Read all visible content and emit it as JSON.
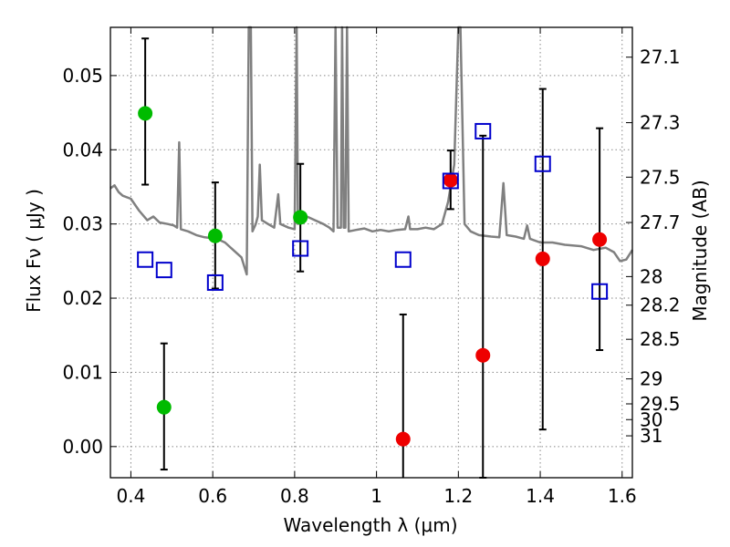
{
  "chart_data": {
    "type": "scatter",
    "xlabel": "Wavelength  λ (μm)",
    "ylabel": "Flux  Fν ( μJy )",
    "y2label": "Magnitude (AB)",
    "xlim": [
      0.35,
      1.625
    ],
    "ylim": [
      -0.0042,
      0.0565
    ],
    "grid": true,
    "x_ticks": [
      {
        "value": 0.4,
        "label": "0.4"
      },
      {
        "value": 0.6,
        "label": "0.6"
      },
      {
        "value": 0.8,
        "label": "0.8"
      },
      {
        "value": 1.0,
        "label": "1"
      },
      {
        "value": 1.2,
        "label": "1.2"
      },
      {
        "value": 1.4,
        "label": "1.4"
      },
      {
        "value": 1.6,
        "label": "1.6"
      }
    ],
    "y_ticks": [
      {
        "value": 0.0,
        "label": "0.00"
      },
      {
        "value": 0.01,
        "label": "0.01"
      },
      {
        "value": 0.02,
        "label": "0.02"
      },
      {
        "value": 0.03,
        "label": "0.03"
      },
      {
        "value": 0.04,
        "label": "0.04"
      },
      {
        "value": 0.05,
        "label": "0.05"
      }
    ],
    "y2_ticks": [
      {
        "mag": 27.1,
        "label": "27.1"
      },
      {
        "mag": 27.3,
        "label": "27.3"
      },
      {
        "mag": 27.5,
        "label": "27.5"
      },
      {
        "mag": 27.7,
        "label": "27.7"
      },
      {
        "mag": 28.0,
        "label": "28"
      },
      {
        "mag": 28.2,
        "label": "28.2"
      },
      {
        "mag": 28.5,
        "label": "28.5"
      },
      {
        "mag": 29.0,
        "label": "29"
      },
      {
        "mag": 29.5,
        "label": "29.5"
      },
      {
        "mag": 30.0,
        "label": "30"
      },
      {
        "mag": 31.0,
        "label": "31"
      }
    ],
    "colors": {
      "green": "#00bb00",
      "red": "#ee0000",
      "blue_square": "#0000cc",
      "model": "#808080",
      "errorbar": "#000000",
      "grid": "#888888"
    },
    "series": [
      {
        "marker": "circle-green",
        "points": [
          {
            "x": 0.435,
            "y": 0.0449,
            "err_lo": 0.0096,
            "err_hi": 0.0101
          },
          {
            "x": 0.481,
            "y": 0.0053,
            "err_lo": 0.0084,
            "err_hi": 0.0086
          },
          {
            "x": 0.606,
            "y": 0.0284,
            "err_lo": 0.0071,
            "err_hi": 0.0072
          },
          {
            "x": 0.814,
            "y": 0.0309,
            "err_lo": 0.0073,
            "err_hi": 0.0072
          }
        ]
      },
      {
        "marker": "circle-red",
        "points": [
          {
            "x": 1.065,
            "y": 0.001,
            "err_lo": 0.0055,
            "err_hi": 0.0168
          },
          {
            "x": 1.181,
            "y": 0.0359,
            "err_lo": 0.0039,
            "err_hi": 0.004
          },
          {
            "x": 1.26,
            "y": 0.0123,
            "err_lo": 0.0165,
            "err_hi": 0.0296
          },
          {
            "x": 1.406,
            "y": 0.0253,
            "err_lo": 0.023,
            "err_hi": 0.0229
          },
          {
            "x": 1.545,
            "y": 0.0279,
            "err_lo": 0.0149,
            "err_hi": 0.015
          }
        ]
      },
      {
        "marker": "square-blue",
        "points": [
          {
            "x": 0.435,
            "y": 0.0252
          },
          {
            "x": 0.481,
            "y": 0.0238
          },
          {
            "x": 0.606,
            "y": 0.0221
          },
          {
            "x": 0.814,
            "y": 0.0267
          },
          {
            "x": 1.065,
            "y": 0.0252
          },
          {
            "x": 1.181,
            "y": 0.0358
          },
          {
            "x": 1.26,
            "y": 0.0425
          },
          {
            "x": 1.406,
            "y": 0.0381
          },
          {
            "x": 1.545,
            "y": 0.0209
          }
        ]
      },
      {
        "marker": "line-model",
        "points": [
          {
            "x": 0.35,
            "y": 0.0348
          },
          {
            "x": 0.36,
            "y": 0.0352
          },
          {
            "x": 0.37,
            "y": 0.0343
          },
          {
            "x": 0.38,
            "y": 0.0338
          },
          {
            "x": 0.4,
            "y": 0.0334
          },
          {
            "x": 0.42,
            "y": 0.0318
          },
          {
            "x": 0.44,
            "y": 0.0305
          },
          {
            "x": 0.455,
            "y": 0.031
          },
          {
            "x": 0.47,
            "y": 0.0302
          },
          {
            "x": 0.49,
            "y": 0.03
          },
          {
            "x": 0.505,
            "y": 0.0298
          },
          {
            "x": 0.513,
            "y": 0.0295
          },
          {
            "x": 0.518,
            "y": 0.041
          },
          {
            "x": 0.522,
            "y": 0.0293
          },
          {
            "x": 0.54,
            "y": 0.029
          },
          {
            "x": 0.56,
            "y": 0.0285
          },
          {
            "x": 0.58,
            "y": 0.0282
          },
          {
            "x": 0.61,
            "y": 0.028
          },
          {
            "x": 0.63,
            "y": 0.0275
          },
          {
            "x": 0.65,
            "y": 0.0265
          },
          {
            "x": 0.67,
            "y": 0.0255
          },
          {
            "x": 0.683,
            "y": 0.0232
          },
          {
            "x": 0.688,
            "y": 0.0565
          },
          {
            "x": 0.693,
            "y": 0.0565
          },
          {
            "x": 0.697,
            "y": 0.029
          },
          {
            "x": 0.705,
            "y": 0.03
          },
          {
            "x": 0.71,
            "y": 0.031
          },
          {
            "x": 0.715,
            "y": 0.038
          },
          {
            "x": 0.72,
            "y": 0.0305
          },
          {
            "x": 0.735,
            "y": 0.03
          },
          {
            "x": 0.75,
            "y": 0.0295
          },
          {
            "x": 0.76,
            "y": 0.034
          },
          {
            "x": 0.765,
            "y": 0.03
          },
          {
            "x": 0.785,
            "y": 0.0295
          },
          {
            "x": 0.8,
            "y": 0.0293
          },
          {
            "x": 0.805,
            "y": 0.0565
          },
          {
            "x": 0.808,
            "y": 0.03
          },
          {
            "x": 0.83,
            "y": 0.031
          },
          {
            "x": 0.85,
            "y": 0.0305
          },
          {
            "x": 0.87,
            "y": 0.03
          },
          {
            "x": 0.885,
            "y": 0.0295
          },
          {
            "x": 0.895,
            "y": 0.029
          },
          {
            "x": 0.9,
            "y": 0.0565
          },
          {
            "x": 0.905,
            "y": 0.0295
          },
          {
            "x": 0.913,
            "y": 0.0295
          },
          {
            "x": 0.916,
            "y": 0.0565
          },
          {
            "x": 0.92,
            "y": 0.0295
          },
          {
            "x": 0.924,
            "y": 0.0295
          },
          {
            "x": 0.928,
            "y": 0.0565
          },
          {
            "x": 0.932,
            "y": 0.029
          },
          {
            "x": 0.95,
            "y": 0.0292
          },
          {
            "x": 0.97,
            "y": 0.0294
          },
          {
            "x": 0.99,
            "y": 0.029
          },
          {
            "x": 1.01,
            "y": 0.0292
          },
          {
            "x": 1.03,
            "y": 0.029
          },
          {
            "x": 1.05,
            "y": 0.0292
          },
          {
            "x": 1.07,
            "y": 0.0293
          },
          {
            "x": 1.078,
            "y": 0.031
          },
          {
            "x": 1.082,
            "y": 0.0293
          },
          {
            "x": 1.1,
            "y": 0.0293
          },
          {
            "x": 1.12,
            "y": 0.0295
          },
          {
            "x": 1.14,
            "y": 0.0293
          },
          {
            "x": 1.16,
            "y": 0.03
          },
          {
            "x": 1.175,
            "y": 0.033
          },
          {
            "x": 1.19,
            "y": 0.038
          },
          {
            "x": 1.2,
            "y": 0.0565
          },
          {
            "x": 1.205,
            "y": 0.0565
          },
          {
            "x": 1.215,
            "y": 0.03
          },
          {
            "x": 1.23,
            "y": 0.029
          },
          {
            "x": 1.25,
            "y": 0.0285
          },
          {
            "x": 1.28,
            "y": 0.0283
          },
          {
            "x": 1.3,
            "y": 0.0282
          },
          {
            "x": 1.31,
            "y": 0.0355
          },
          {
            "x": 1.318,
            "y": 0.0285
          },
          {
            "x": 1.34,
            "y": 0.0283
          },
          {
            "x": 1.36,
            "y": 0.028
          },
          {
            "x": 1.368,
            "y": 0.0298
          },
          {
            "x": 1.375,
            "y": 0.028
          },
          {
            "x": 1.4,
            "y": 0.0275
          },
          {
            "x": 1.43,
            "y": 0.0275
          },
          {
            "x": 1.46,
            "y": 0.0272
          },
          {
            "x": 1.5,
            "y": 0.027
          },
          {
            "x": 1.53,
            "y": 0.0265
          },
          {
            "x": 1.56,
            "y": 0.0268
          },
          {
            "x": 1.58,
            "y": 0.0262
          },
          {
            "x": 1.595,
            "y": 0.025
          },
          {
            "x": 1.61,
            "y": 0.0252
          },
          {
            "x": 1.625,
            "y": 0.0265
          }
        ]
      }
    ]
  }
}
